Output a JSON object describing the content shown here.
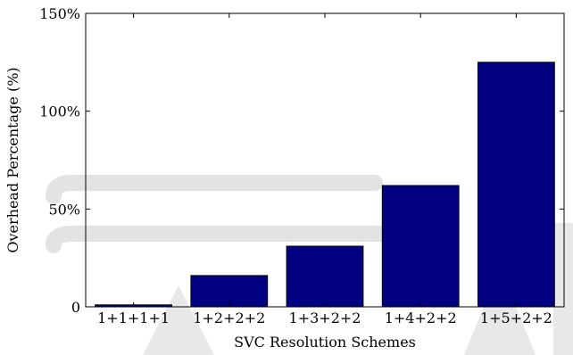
{
  "chart_data": {
    "type": "bar",
    "title": "",
    "xlabel": "SVC Resolution Schemes",
    "ylabel": "Overhead Percentage (%)",
    "categories": [
      "1+1+1+1",
      "1+2+2+2",
      "1+3+2+2",
      "1+4+2+2",
      "1+5+2+2"
    ],
    "values": [
      1,
      16,
      31,
      62,
      125
    ],
    "ylim": [
      0,
      150
    ],
    "yticks": [
      {
        "value": 0,
        "label": "0"
      },
      {
        "value": 50,
        "label": "50%"
      },
      {
        "value": 100,
        "label": "100%"
      },
      {
        "value": 150,
        "label": "150%"
      }
    ],
    "grid": false,
    "legend": "none",
    "bar_color": "#000080"
  }
}
